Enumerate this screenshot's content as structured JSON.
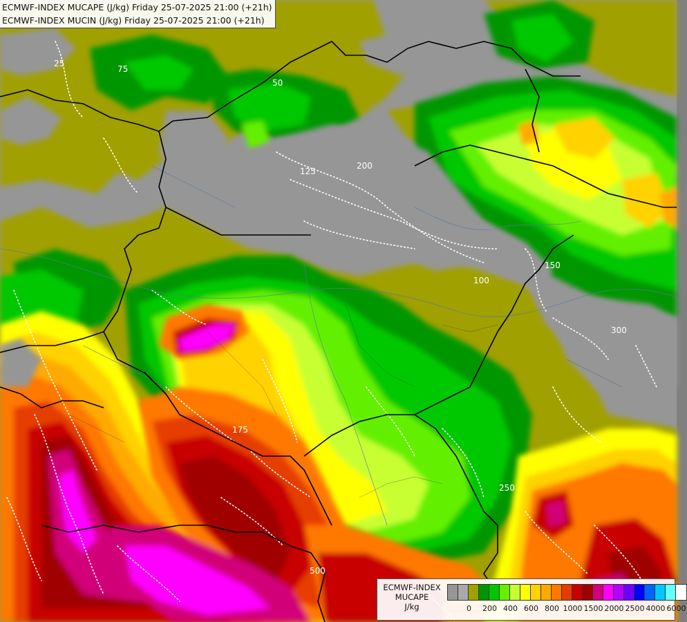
{
  "header": {
    "line1": "ECMWF-INDEX MUCAPE (J/kg) Friday 25-07-2025 21:00 (+21h)",
    "line2": "ECMWF-INDEX MUCIN (J/kg) Friday 25-07-2025 21:00 (+21h)"
  },
  "legend": {
    "title_line1": "ECMWF-INDEX",
    "title_line2": "MUCAPE",
    "title_line3": "J/kg",
    "colors": [
      "#969696",
      "#a9a9a9",
      "#a0a000",
      "#009600",
      "#00c800",
      "#64f000",
      "#c8ff32",
      "#ffff00",
      "#ffd200",
      "#ffaa00",
      "#ff7800",
      "#e63c00",
      "#c80000",
      "#a00000",
      "#d20078",
      "#ff00ff",
      "#b400ff",
      "#6e00ff",
      "#0000ff",
      "#0064ff",
      "#00c8ff",
      "#64ffff",
      "#ffffff"
    ],
    "tick_labels": [
      "0",
      "200",
      "400",
      "600",
      "800",
      "1000",
      "1500",
      "2000",
      "2500",
      "4000",
      "6000"
    ]
  },
  "map": {
    "contour_labels": [
      "25",
      "50",
      "75",
      "100",
      "125",
      "150",
      "175",
      "200",
      "250",
      "300",
      "500"
    ],
    "colors": {
      "low": "#969696",
      "olive": "#a0a000",
      "green_dark": "#009600",
      "green": "#00c800",
      "green_light": "#64f000",
      "lime": "#c8ff32",
      "yellow": "#ffff00",
      "gold": "#ffd200",
      "orange": "#ffaa00",
      "orange_dark": "#ff7800",
      "red": "#e63c00",
      "crimson": "#c80000",
      "maroon": "#a00000",
      "magenta_dark": "#d20078",
      "magenta": "#ff00ff",
      "border": "#000000",
      "river": "#5a78a0"
    }
  }
}
